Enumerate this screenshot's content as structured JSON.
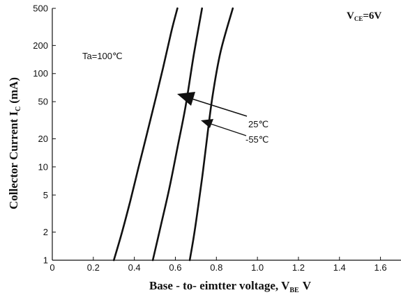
{
  "chart_data": {
    "type": "line",
    "xlabel_main": "Base - to- eimtter voltage, V",
    "xlabel_sub": "BE",
    "xlabel_unit": "V",
    "ylabel_main": "Collector Current I",
    "ylabel_sub": "C",
    "ylabel_unit": "(mA)",
    "condition_main": "V",
    "condition_sub": "CE",
    "condition_value": "=6V",
    "x_ticks": [
      "0",
      "0.2",
      "0.4",
      "0.6",
      "0.8",
      "1.0",
      "1.2",
      "1.4",
      "1.6"
    ],
    "x_tick_values": [
      0,
      0.2,
      0.4,
      0.6,
      0.8,
      1.0,
      1.2,
      1.4,
      1.6
    ],
    "y_ticks": [
      "1",
      "2",
      "5",
      "10",
      "20",
      "50",
      "100",
      "200",
      "500"
    ],
    "y_tick_values": [
      1,
      2,
      5,
      10,
      20,
      50,
      100,
      200,
      500
    ],
    "xlim": [
      0,
      1.7
    ],
    "ylim": [
      1,
      500
    ],
    "y_scale": "log",
    "grid": false,
    "annotations": [
      "Ta=100℃",
      "25℃",
      "-55℃"
    ],
    "series": [
      {
        "name": "Ta=100℃",
        "x": [
          0.3,
          0.34,
          0.38,
          0.42,
          0.46,
          0.5,
          0.54,
          0.58,
          0.61
        ],
        "y": [
          1,
          2,
          4.3,
          9.8,
          22,
          50,
          115,
          280,
          500
        ]
      },
      {
        "name": "25℃",
        "x": [
          0.49,
          0.53,
          0.57,
          0.61,
          0.65,
          0.69,
          0.73
        ],
        "y": [
          1,
          2.4,
          5.8,
          16,
          45,
          160,
          500
        ]
      },
      {
        "name": "-55℃",
        "x": [
          0.67,
          0.69,
          0.71,
          0.73,
          0.75,
          0.78,
          0.82,
          0.88
        ],
        "y": [
          1,
          1.8,
          3.6,
          7.5,
          17,
          55,
          170,
          500
        ]
      }
    ]
  }
}
